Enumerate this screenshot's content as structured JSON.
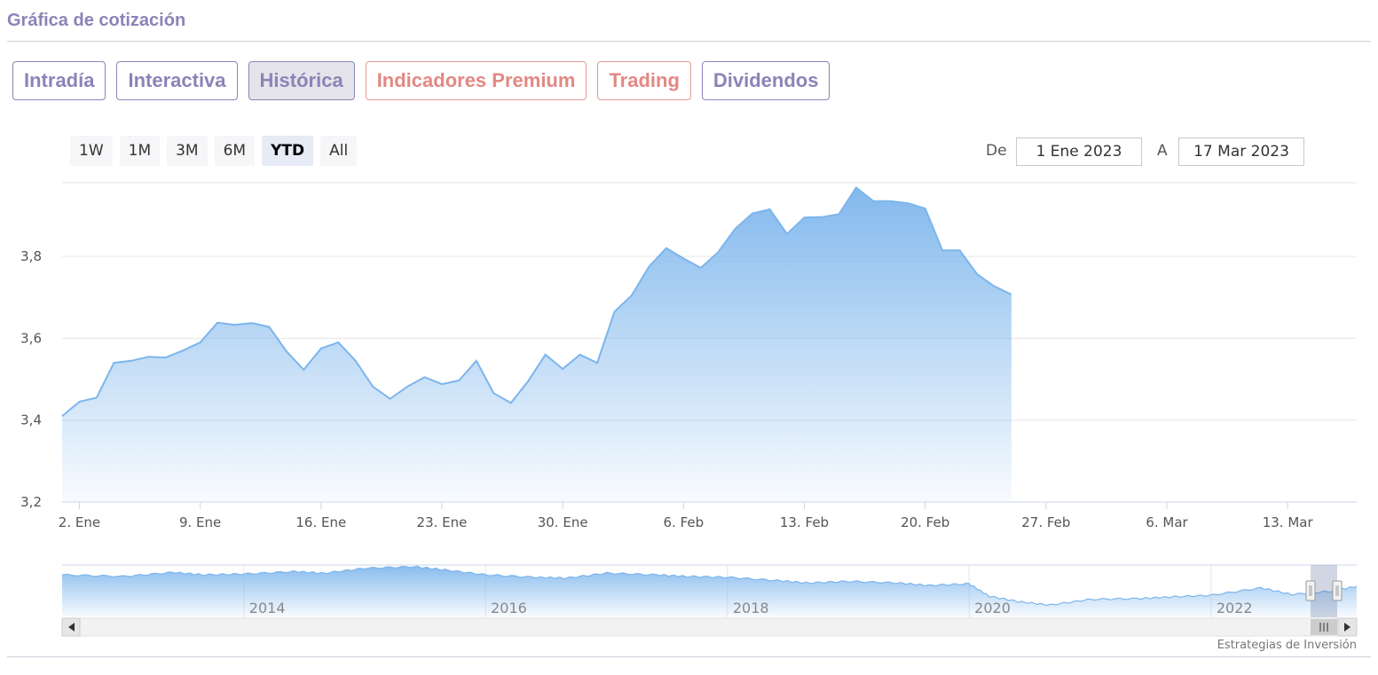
{
  "header": {
    "title": "Gráfica de cotización"
  },
  "tabs": [
    {
      "label": "Intradía",
      "style": "normal"
    },
    {
      "label": "Interactiva",
      "style": "normal"
    },
    {
      "label": "Histórica",
      "style": "active"
    },
    {
      "label": "Indicadores Premium",
      "style": "red"
    },
    {
      "label": "Trading",
      "style": "red"
    },
    {
      "label": "Dividendos",
      "style": "normal"
    }
  ],
  "range_selector": {
    "buttons": [
      "1W",
      "1M",
      "3M",
      "6M",
      "YTD",
      "All"
    ],
    "selected": "YTD",
    "from_label": "De",
    "from_value": "1 Ene 2023",
    "to_label": "A",
    "to_value": "17 Mar 2023"
  },
  "credit": "Estrategias de Inversión",
  "colors": {
    "accent": "#8c83b8",
    "premium": "#e38884",
    "series": "#7cb5ec"
  },
  "chart_data": {
    "type": "area",
    "title": "",
    "xlabel": "",
    "ylabel": "",
    "ylim": [
      3.2,
      3.98
    ],
    "yticks": [
      "3,2",
      "3,4",
      "3,6",
      "3,8"
    ],
    "xticks": [
      "2. Ene",
      "9. Ene",
      "16. Ene",
      "23. Ene",
      "30. Ene",
      "6. Feb",
      "13. Feb",
      "20. Feb",
      "27. Feb",
      "6. Mar",
      "13. Mar"
    ],
    "x_range": [
      "2023-01-01",
      "2023-03-17"
    ],
    "series": [
      {
        "name": "",
        "points": [
          [
            "2023-01-01",
            3.41
          ],
          [
            "2023-01-02",
            3.445
          ],
          [
            "2023-01-03",
            3.455
          ],
          [
            "2023-01-04",
            3.54
          ],
          [
            "2023-01-05",
            3.545
          ],
          [
            "2023-01-06",
            3.555
          ],
          [
            "2023-01-07",
            3.553
          ],
          [
            "2023-01-08",
            3.57
          ],
          [
            "2023-01-09",
            3.59
          ],
          [
            "2023-01-10",
            3.638
          ],
          [
            "2023-01-11",
            3.633
          ],
          [
            "2023-01-12",
            3.637
          ],
          [
            "2023-01-13",
            3.628
          ],
          [
            "2023-01-14",
            3.568
          ],
          [
            "2023-01-15",
            3.523
          ],
          [
            "2023-01-16",
            3.575
          ],
          [
            "2023-01-17",
            3.59
          ],
          [
            "2023-01-18",
            3.545
          ],
          [
            "2023-01-19",
            3.482
          ],
          [
            "2023-01-20",
            3.452
          ],
          [
            "2023-01-21",
            3.482
          ],
          [
            "2023-01-22",
            3.505
          ],
          [
            "2023-01-23",
            3.488
          ],
          [
            "2023-01-24",
            3.497
          ],
          [
            "2023-01-25",
            3.545
          ],
          [
            "2023-01-26",
            3.466
          ],
          [
            "2023-01-27",
            3.442
          ],
          [
            "2023-01-28",
            3.495
          ],
          [
            "2023-01-29",
            3.56
          ],
          [
            "2023-01-30",
            3.525
          ],
          [
            "2023-01-31",
            3.56
          ],
          [
            "2023-02-01",
            3.54
          ],
          [
            "2023-02-02",
            3.665
          ],
          [
            "2023-02-03",
            3.705
          ],
          [
            "2023-02-04",
            3.775
          ],
          [
            "2023-02-05",
            3.82
          ],
          [
            "2023-02-06",
            3.795
          ],
          [
            "2023-02-07",
            3.772
          ],
          [
            "2023-02-08",
            3.81
          ],
          [
            "2023-02-09",
            3.868
          ],
          [
            "2023-02-10",
            3.905
          ],
          [
            "2023-02-11",
            3.915
          ],
          [
            "2023-02-12",
            3.855
          ],
          [
            "2023-02-13",
            3.895
          ],
          [
            "2023-02-14",
            3.896
          ],
          [
            "2023-02-15",
            3.903
          ],
          [
            "2023-02-16",
            3.968
          ],
          [
            "2023-02-17",
            3.935
          ],
          [
            "2023-02-18",
            3.935
          ],
          [
            "2023-02-19",
            3.93
          ],
          [
            "2023-02-20",
            3.917
          ],
          [
            "2023-02-21",
            3.815
          ],
          [
            "2023-02-22",
            3.815
          ],
          [
            "2023-02-23",
            3.757
          ],
          [
            "2023-02-24",
            3.727
          ],
          [
            "2023-02-25",
            3.707
          ]
        ]
      }
    ],
    "navigator": {
      "xticks": [
        "2014",
        "2016",
        "2018",
        "2020",
        "2022"
      ],
      "range": [
        "2012-07-01",
        "2023-03-17"
      ],
      "ylim": [
        1.8,
        5.0
      ],
      "points": [
        [
          "2012-07-01",
          4.4
        ],
        [
          "2013-01-01",
          4.3
        ],
        [
          "2013-06-01",
          4.55
        ],
        [
          "2013-09-01",
          4.4
        ],
        [
          "2014-01-01",
          4.45
        ],
        [
          "2014-06-01",
          4.6
        ],
        [
          "2014-09-01",
          4.5
        ],
        [
          "2015-01-01",
          4.8
        ],
        [
          "2015-06-01",
          4.9
        ],
        [
          "2015-09-01",
          4.7
        ],
        [
          "2016-01-01",
          4.4
        ],
        [
          "2016-06-01",
          4.25
        ],
        [
          "2016-09-01",
          4.2
        ],
        [
          "2017-01-01",
          4.5
        ],
        [
          "2017-06-01",
          4.4
        ],
        [
          "2017-09-01",
          4.3
        ],
        [
          "2018-01-01",
          4.25
        ],
        [
          "2018-06-01",
          4.05
        ],
        [
          "2018-09-01",
          3.9
        ],
        [
          "2019-01-01",
          4.0
        ],
        [
          "2019-06-01",
          3.9
        ],
        [
          "2019-09-01",
          3.75
        ],
        [
          "2020-01-01",
          3.85
        ],
        [
          "2020-03-01",
          3.1
        ],
        [
          "2020-06-01",
          2.75
        ],
        [
          "2020-09-01",
          2.55
        ],
        [
          "2021-01-01",
          2.9
        ],
        [
          "2021-06-01",
          2.95
        ],
        [
          "2021-09-01",
          3.05
        ],
        [
          "2022-01-01",
          3.15
        ],
        [
          "2022-06-01",
          3.6
        ],
        [
          "2022-09-01",
          3.2
        ],
        [
          "2023-01-01",
          3.4
        ],
        [
          "2023-03-17",
          3.7
        ]
      ]
    }
  }
}
